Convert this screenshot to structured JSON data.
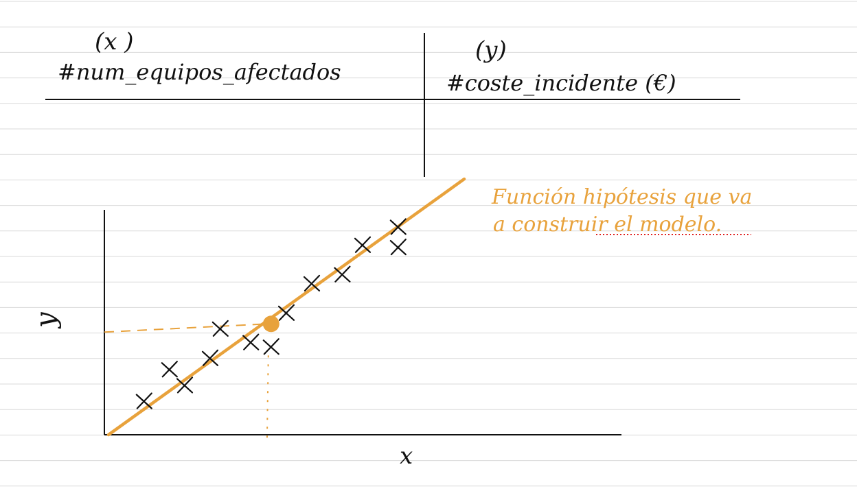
{
  "table": {
    "col_x_marker": "(x )",
    "col_x_label": "#num_equipos_afectados",
    "col_y_marker": "(y)",
    "col_y_label": "#coste_incidente (€)"
  },
  "plot": {
    "y_axis_label": "y",
    "x_axis_label": "x",
    "annotation_line1": "Función hipótesis que va",
    "annotation_line2": "a construir el modelo."
  },
  "colors": {
    "ink": "#111111",
    "accent": "#E8A23C",
    "rule_line": "#d9d9d9",
    "spell_underline": "#e02020"
  },
  "chart_data": {
    "type": "scatter",
    "title": "",
    "xlabel": "x",
    "ylabel": "y",
    "x_ticks": [],
    "y_ticks": [],
    "series": [
      {
        "points": [
          {
            "x": 0.07,
            "y": 0.15
          },
          {
            "x": 0.12,
            "y": 0.29
          },
          {
            "x": 0.15,
            "y": 0.22
          },
          {
            "x": 0.2,
            "y": 0.34
          },
          {
            "x": 0.22,
            "y": 0.47
          },
          {
            "x": 0.28,
            "y": 0.41
          },
          {
            "x": 0.32,
            "y": 0.39
          },
          {
            "x": 0.35,
            "y": 0.54
          },
          {
            "x": 0.4,
            "y": 0.67
          },
          {
            "x": 0.46,
            "y": 0.71
          },
          {
            "x": 0.5,
            "y": 0.84
          },
          {
            "x": 0.57,
            "y": 0.92
          },
          {
            "x": 0.57,
            "y": 0.83
          }
        ]
      }
    ],
    "hypothesis_line": {
      "x": [
        0.0,
        0.7
      ],
      "y": [
        0.0,
        1.13
      ]
    },
    "highlight_point": {
      "x": 0.32,
      "y": 0.49
    }
  }
}
